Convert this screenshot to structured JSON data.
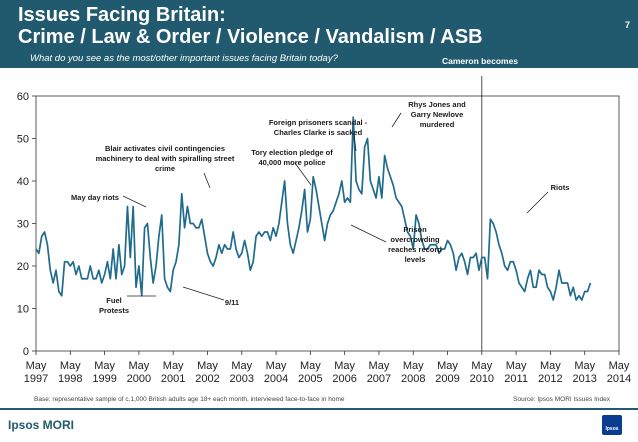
{
  "header": {
    "title_line1": "Issues Facing Britain:",
    "title_line2": "Crime / Law & Order / Violence / Vandalism / ASB",
    "subtitle": "What do you see as the most/other important issues facing Britain today?",
    "page_number": "7",
    "colors": {
      "band": "#215a6e",
      "line": "#215a6e",
      "text": "#ffffff"
    }
  },
  "footer": {
    "base": "Base: representative sample of c.1,000 British adults age 18+ each month, interviewed face-to-face in home",
    "source": "Source: Ipsos MORI Issues Index",
    "brand": "Ipsos MORI",
    "logo_text": "Ipsos"
  },
  "chart_data": {
    "type": "line",
    "title": "Crime / Law & Order / Violence / Vandalism / ASB",
    "xlabel": "",
    "ylabel": "",
    "ylim": [
      0,
      60
    ],
    "yticks": [
      0,
      10,
      20,
      30,
      40,
      50,
      60
    ],
    "grid": false,
    "x_range": [
      1997.33,
      2014.33
    ],
    "x_tick_labels": [
      {
        "month": "May",
        "year": "1997"
      },
      {
        "month": "May",
        "year": "1998"
      },
      {
        "month": "May",
        "year": "1999"
      },
      {
        "month": "May",
        "year": "2000"
      },
      {
        "month": "May",
        "year": "2001"
      },
      {
        "month": "May",
        "year": "2002"
      },
      {
        "month": "May",
        "year": "2003"
      },
      {
        "month": "May",
        "year": "2004"
      },
      {
        "month": "May",
        "year": "2005"
      },
      {
        "month": "May",
        "year": "2006"
      },
      {
        "month": "May",
        "year": "2007"
      },
      {
        "month": "May",
        "year": "2008"
      },
      {
        "month": "May",
        "year": "2009"
      },
      {
        "month": "May",
        "year": "2010"
      },
      {
        "month": "May",
        "year": "2011"
      },
      {
        "month": "May",
        "year": "2012"
      },
      {
        "month": "May",
        "year": "2013"
      },
      {
        "month": "May",
        "year": "2014"
      }
    ],
    "series": [
      {
        "name": "Crime / Law & Order / Violence / Vandalism / ASB",
        "color": "#1f6b8e",
        "start": "May 1997",
        "values": [
          24,
          23,
          27,
          28,
          25,
          19,
          16,
          19,
          14,
          13,
          21,
          21,
          20,
          21,
          18,
          20,
          17,
          17,
          17,
          20,
          17,
          17,
          19,
          16,
          18,
          21,
          17,
          24,
          17,
          25,
          18,
          20,
          34,
          22,
          34,
          15,
          20,
          13,
          29,
          30,
          22,
          16,
          20,
          27,
          32,
          17,
          15,
          14,
          19,
          21,
          25,
          37,
          29,
          34,
          30,
          30,
          29,
          29,
          31,
          27,
          23,
          21,
          20,
          22,
          25,
          23,
          25,
          24,
          24,
          28,
          24,
          22,
          23,
          26,
          23,
          19,
          21,
          27,
          28,
          27,
          28,
          28,
          26,
          29,
          27,
          30,
          35,
          40,
          30,
          25,
          23,
          26,
          29,
          33,
          38,
          28,
          31,
          41,
          38,
          34,
          30,
          26,
          30,
          32,
          33,
          35,
          37,
          40,
          35,
          36,
          35,
          55,
          40,
          38,
          37,
          48,
          50,
          40,
          38,
          36,
          41,
          36,
          46,
          43,
          41,
          39,
          36,
          35,
          34,
          31,
          28,
          27,
          24,
          32,
          30,
          26,
          24,
          24,
          25,
          25,
          25,
          23,
          24,
          24,
          26,
          25,
          23,
          19,
          22,
          23,
          21,
          18,
          22,
          22,
          23,
          19,
          22,
          22,
          17,
          31,
          30,
          28,
          25,
          23,
          20,
          19,
          21,
          21,
          19,
          16,
          15,
          14,
          17,
          19,
          15,
          15,
          19,
          18,
          18,
          15,
          14,
          12,
          15,
          19,
          16,
          16,
          16,
          13,
          15,
          12,
          13,
          12,
          14,
          14,
          16
        ]
      }
    ],
    "annotations": [
      {
        "text": "Cameron becomes PM",
        "at": "May 2010",
        "lines": [
          "Cameron becomes",
          "PM"
        ]
      },
      {
        "text": "May day riots",
        "lines": [
          "May day riots"
        ]
      },
      {
        "text": "Fuel Protests",
        "lines": [
          "Fuel",
          "Protests"
        ]
      },
      {
        "text": "Blair activates civil contingencies machinery to deal with spiralling street crime",
        "lines": [
          "Blair activates civil contingencies",
          "machinery to deal with spiralling street",
          "crime"
        ]
      },
      {
        "text": "9/11",
        "lines": [
          "9/11"
        ]
      },
      {
        "text": "Tory election pledge of 40,000 more police",
        "lines": [
          "Tory election pledge of",
          "40,000 more police"
        ]
      },
      {
        "text": "Foreign prisoners scandal - Charles Clarke is sacked",
        "lines": [
          "Foreign prisoners scandal -",
          "Charles Clarke is sacked"
        ]
      },
      {
        "text": "Rhys Jones and Garry Newlove murdered",
        "lines": [
          "Rhys Jones and",
          "Garry Newlove",
          "murdered"
        ]
      },
      {
        "text": "Prison overcrowding reaches record levels",
        "lines": [
          "Prison",
          "overcrowding",
          "reaches record",
          "levels"
        ]
      },
      {
        "text": "Riots",
        "lines": [
          "Riots"
        ]
      }
    ]
  }
}
